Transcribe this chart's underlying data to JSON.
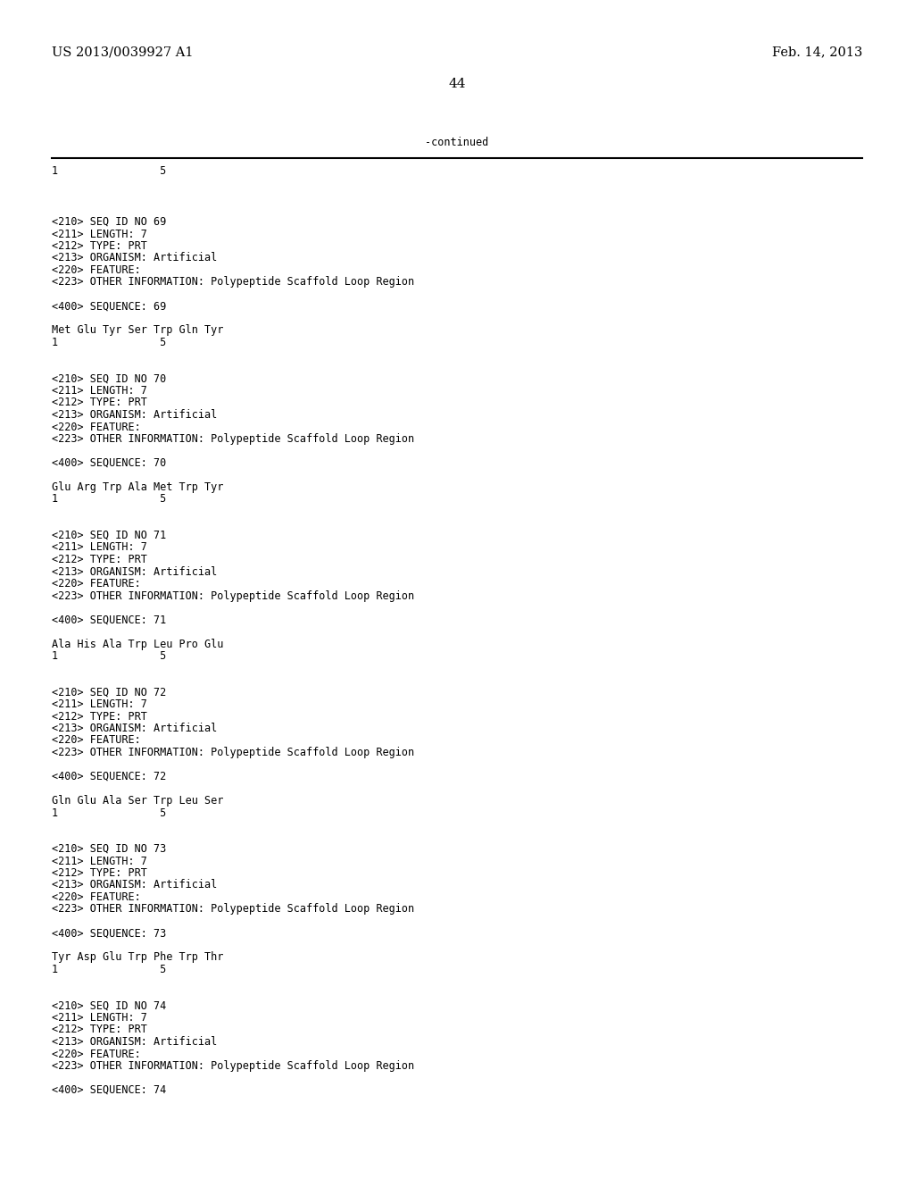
{
  "background_color": "#ffffff",
  "top_left_text": "US 2013/0039927 A1",
  "top_right_text": "Feb. 14, 2013",
  "page_number": "44",
  "continued_text": "-continued",
  "ruler_numbers": "1                5",
  "font_size_header": 10.5,
  "font_size_body": 8.5,
  "font_size_page_num": 11,
  "body_lines": [
    "",
    "",
    "<210> SEQ ID NO 69",
    "<211> LENGTH: 7",
    "<212> TYPE: PRT",
    "<213> ORGANISM: Artificial",
    "<220> FEATURE:",
    "<223> OTHER INFORMATION: Polypeptide Scaffold Loop Region",
    "",
    "<400> SEQUENCE: 69",
    "",
    "Met Glu Tyr Ser Trp Gln Tyr",
    "1                5",
    "",
    "",
    "<210> SEQ ID NO 70",
    "<211> LENGTH: 7",
    "<212> TYPE: PRT",
    "<213> ORGANISM: Artificial",
    "<220> FEATURE:",
    "<223> OTHER INFORMATION: Polypeptide Scaffold Loop Region",
    "",
    "<400> SEQUENCE: 70",
    "",
    "Glu Arg Trp Ala Met Trp Tyr",
    "1                5",
    "",
    "",
    "<210> SEQ ID NO 71",
    "<211> LENGTH: 7",
    "<212> TYPE: PRT",
    "<213> ORGANISM: Artificial",
    "<220> FEATURE:",
    "<223> OTHER INFORMATION: Polypeptide Scaffold Loop Region",
    "",
    "<400> SEQUENCE: 71",
    "",
    "Ala His Ala Trp Leu Pro Glu",
    "1                5",
    "",
    "",
    "<210> SEQ ID NO 72",
    "<211> LENGTH: 7",
    "<212> TYPE: PRT",
    "<213> ORGANISM: Artificial",
    "<220> FEATURE:",
    "<223> OTHER INFORMATION: Polypeptide Scaffold Loop Region",
    "",
    "<400> SEQUENCE: 72",
    "",
    "Gln Glu Ala Ser Trp Leu Ser",
    "1                5",
    "",
    "",
    "<210> SEQ ID NO 73",
    "<211> LENGTH: 7",
    "<212> TYPE: PRT",
    "<213> ORGANISM: Artificial",
    "<220> FEATURE:",
    "<223> OTHER INFORMATION: Polypeptide Scaffold Loop Region",
    "",
    "<400> SEQUENCE: 73",
    "",
    "Tyr Asp Glu Trp Phe Trp Thr",
    "1                5",
    "",
    "",
    "<210> SEQ ID NO 74",
    "<211> LENGTH: 7",
    "<212> TYPE: PRT",
    "<213> ORGANISM: Artificial",
    "<220> FEATURE:",
    "<223> OTHER INFORMATION: Polypeptide Scaffold Loop Region",
    "",
    "<400> SEQUENCE: 74"
  ]
}
